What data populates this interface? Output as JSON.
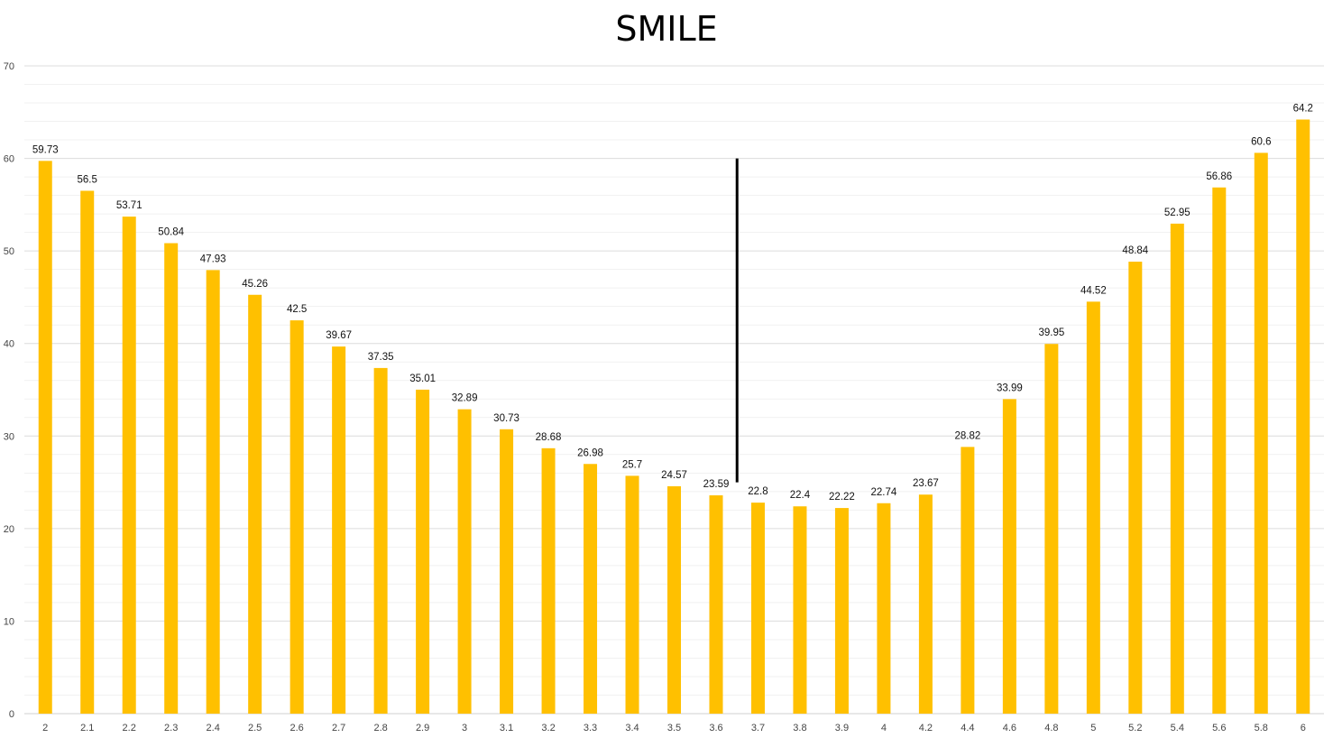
{
  "chart_data": {
    "type": "bar",
    "title": "SMILE",
    "xlabel": "",
    "ylabel": "",
    "ylim": [
      0,
      70
    ],
    "yticks": [
      0,
      10,
      20,
      30,
      40,
      50,
      60,
      70
    ],
    "grid": true,
    "bar_color": "#FFC000",
    "marker_color": "#000000",
    "marker_between": [
      "3.6",
      "3.7"
    ],
    "marker_range": [
      25,
      60
    ],
    "categories": [
      "2",
      "2.1",
      "2.2",
      "2.3",
      "2.4",
      "2.5",
      "2.6",
      "2.7",
      "2.8",
      "2.9",
      "3",
      "3.1",
      "3.2",
      "3.3",
      "3.4",
      "3.5",
      "3.6",
      "3.7",
      "3.8",
      "3.9",
      "4",
      "4.2",
      "4.4",
      "4.6",
      "4.8",
      "5",
      "5.2",
      "5.4",
      "5.6",
      "5.8",
      "6"
    ],
    "values": [
      59.73,
      56.5,
      53.71,
      50.84,
      47.93,
      45.26,
      42.5,
      39.67,
      37.35,
      35.01,
      32.89,
      30.73,
      28.68,
      26.98,
      25.7,
      24.57,
      23.59,
      22.8,
      22.4,
      22.22,
      22.74,
      23.67,
      28.82,
      33.99,
      39.95,
      44.52,
      48.84,
      52.95,
      56.86,
      60.6,
      64.2
    ],
    "data_labels": [
      "59.73",
      "56.5",
      "53.71",
      "50.84",
      "47.93",
      "45.26",
      "42.5",
      "39.67",
      "37.35",
      "35.01",
      "32.89",
      "30.73",
      "28.68",
      "26.98",
      "25.7",
      "24.57",
      "23.59",
      "22.8",
      "22.4",
      "22.22",
      "22.74",
      "23.67",
      "28.82",
      "33.99",
      "39.95",
      "44.52",
      "48.84",
      "52.95",
      "56.86",
      "60.6",
      "64.2"
    ]
  }
}
